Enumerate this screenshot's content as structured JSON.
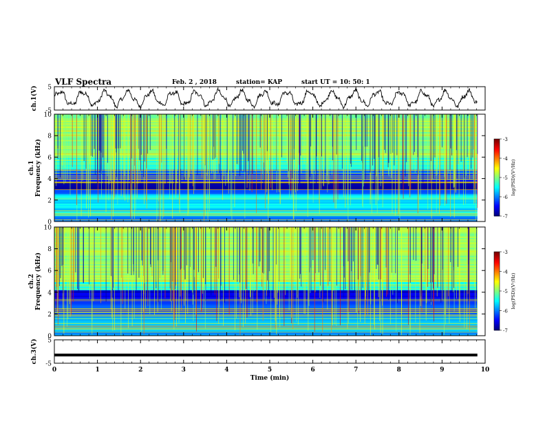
{
  "header": {
    "title": "VLF Spectra",
    "date": "Feb. 2 , 2018",
    "station": "station= KAP",
    "start_time": "start UT = 10: 50: 1"
  },
  "chart_data": [
    {
      "type": "line",
      "ylabel": "ch.1(V)",
      "ylim": [
        -5,
        5
      ],
      "yticks": [
        "5",
        "-5"
      ],
      "xlim": [
        0,
        10
      ],
      "description_free": true,
      "series_color": "#000000"
    },
    {
      "type": "heatmap",
      "ylabel_top": "ch.1",
      "ylabel": "Frequency (kHz)",
      "ylim": [
        0,
        10
      ],
      "yticks": [
        "0",
        "2",
        "4",
        "6",
        "8",
        "10"
      ],
      "xlim": [
        0,
        10
      ],
      "colorbar": {
        "label": "log(PSD)(V²/Hz)",
        "ticks": [
          "-3",
          "-4",
          "-5",
          "-6",
          "-7"
        ],
        "range": [
          -7,
          -3
        ]
      }
    },
    {
      "type": "heatmap",
      "ylabel_top": "ch.2",
      "ylabel": "Frequency (kHz)",
      "ylim": [
        0,
        10
      ],
      "yticks": [
        "0",
        "2",
        "4",
        "6",
        "8",
        "10"
      ],
      "xlim": [
        0,
        10
      ],
      "colorbar": {
        "label": "log(PSD)(V²/Hz)",
        "ticks": [
          "-3",
          "-4",
          "-5",
          "-6",
          "-7"
        ],
        "range": [
          -7,
          -3
        ]
      }
    },
    {
      "type": "line",
      "ylabel": "ch.3(V)",
      "ylim": [
        -5,
        5
      ],
      "yticks": [
        "5",
        "-5"
      ],
      "xlim": [
        0,
        10
      ],
      "xlabel": "Time (min)",
      "xticks": [
        "0",
        "1",
        "2",
        "3",
        "4",
        "5",
        "6",
        "7",
        "8",
        "9",
        "10"
      ],
      "values_constant": -1.5
    }
  ]
}
